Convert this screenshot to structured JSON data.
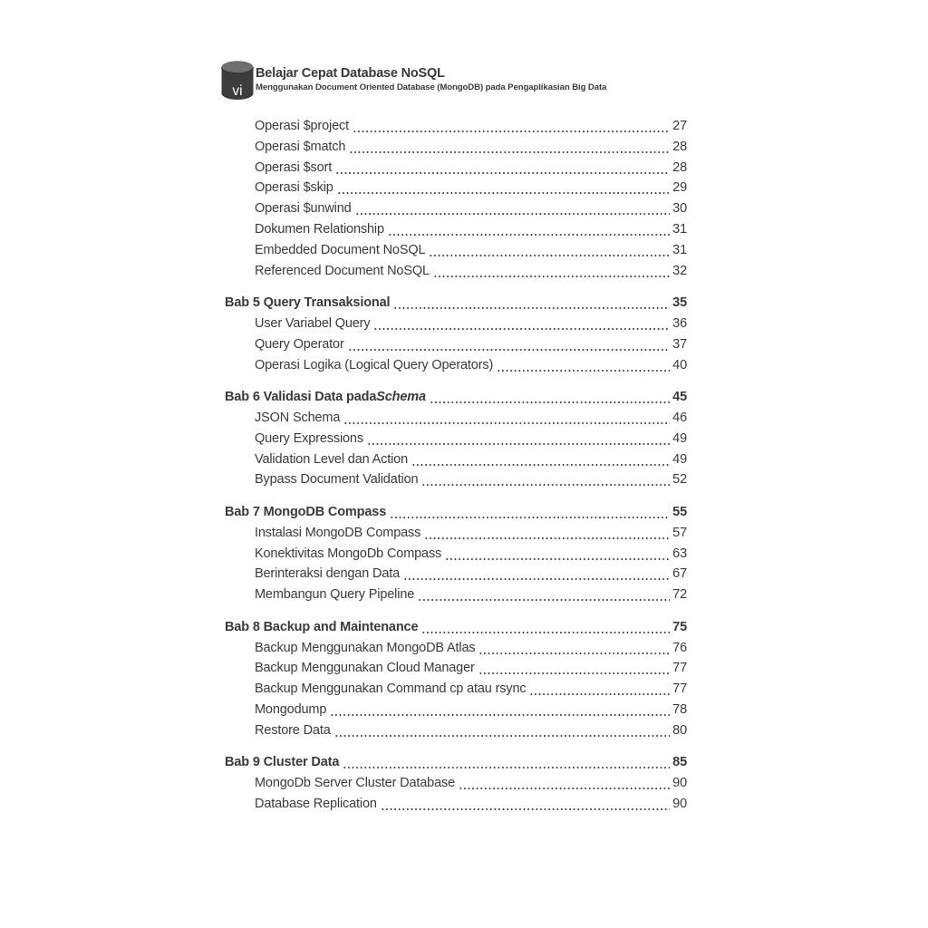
{
  "header": {
    "page_number": "vi",
    "title": "Belajar Cepat Database NoSQL",
    "subtitle": "Menggunakan Document Oriented Database (MongoDB) pada Pengaplikasian Big Data"
  },
  "colors": {
    "text": "#3a3a3a",
    "icon_body": "#3c3c3c",
    "icon_top": "#6f6f6f",
    "icon_text": "#ffffff",
    "background": "#ffffff"
  },
  "toc": {
    "groups": [
      {
        "heading": null,
        "entries": [
          {
            "label": "Operasi $project",
            "page": "27"
          },
          {
            "label": "Operasi $match",
            "page": "28"
          },
          {
            "label": "Operasi $sort",
            "page": "28"
          },
          {
            "label": "Operasi $skip",
            "page": "29"
          },
          {
            "label": "Operasi $unwind",
            "page": "30"
          },
          {
            "label": "Dokumen Relationship",
            "page": "31"
          },
          {
            "label": "Embedded Document NoSQL",
            "page": "31"
          },
          {
            "label": "Referenced Document NoSQL",
            "page": "32"
          }
        ]
      },
      {
        "heading": {
          "label": "Bab 5 Query Transaksional",
          "page": "35"
        },
        "entries": [
          {
            "label": "User Variabel Query",
            "page": "36"
          },
          {
            "label": "Query Operator",
            "page": "37"
          },
          {
            "label": "Operasi Logika (Logical Query Operators)",
            "page": "40"
          }
        ]
      },
      {
        "heading": {
          "label": "Bab 6 Validasi Data pada ",
          "label_italic": "Schema",
          "page": "45"
        },
        "entries": [
          {
            "label": "JSON Schema",
            "page": "46"
          },
          {
            "label": "Query Expressions",
            "page": "49"
          },
          {
            "label": "Validation Level dan Action",
            "page": "49"
          },
          {
            "label": "Bypass Document Validation",
            "page": "52"
          }
        ]
      },
      {
        "heading": {
          "label": "Bab 7 MongoDB Compass",
          "page": "55"
        },
        "entries": [
          {
            "label": "Instalasi MongoDB Compass",
            "page": "57"
          },
          {
            "label": "Konektivitas MongoDb Compass",
            "page": "63"
          },
          {
            "label": "Berinteraksi dengan Data",
            "page": "67"
          },
          {
            "label": "Membangun Query Pipeline",
            "page": "72"
          }
        ]
      },
      {
        "heading": {
          "label": "Bab 8 Backup and Maintenance",
          "page": "75"
        },
        "entries": [
          {
            "label": "Backup Menggunakan MongoDB Atlas",
            "page": "76"
          },
          {
            "label": "Backup Menggunakan Cloud Manager",
            "page": "77"
          },
          {
            "label": "Backup Menggunakan Command cp atau rsync",
            "page": "77"
          },
          {
            "label": "Mongodump",
            "page": "78"
          },
          {
            "label": "Restore Data",
            "page": "80"
          }
        ]
      },
      {
        "heading": {
          "label": "Bab 9 Cluster Data",
          "page": "85"
        },
        "entries": [
          {
            "label": "MongoDb Server Cluster Database",
            "page": "90"
          },
          {
            "label": "Database Replication",
            "page": "90"
          }
        ]
      }
    ]
  }
}
